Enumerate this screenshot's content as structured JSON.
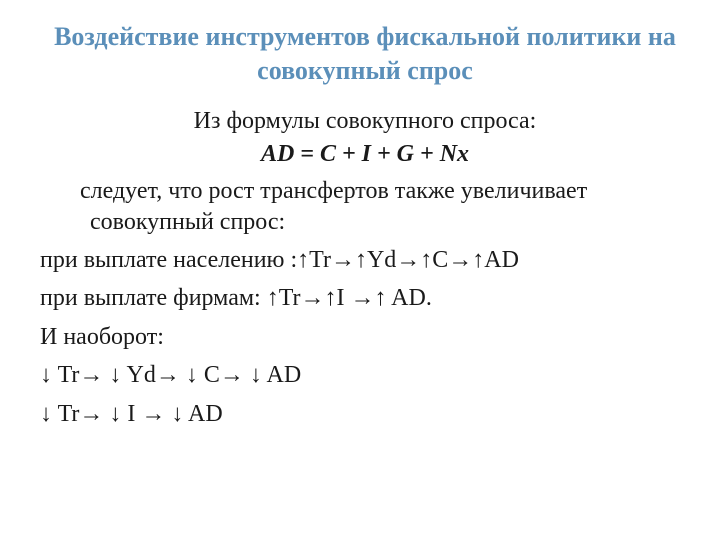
{
  "title": "Воздействие инструментов фискальной политики на совокупный спрос",
  "intro": "Из формулы совокупного спроса:",
  "formula": "AD = C + I + G + Nx",
  "followup": "следует, что рост трансфертов также увеличивает совокупный спрос:",
  "line1": "при выплате населению :↑Tr→↑Yd→↑C→↑AD",
  "line2": "при выплате фирмам: ↑Tr→↑I →↑ AD.",
  "line3": "И наоборот:",
  "line4": "↓ Tr→ ↓ Yd→ ↓ C→ ↓ AD",
  "line5": "↓ Tr→ ↓ I → ↓ AD",
  "colors": {
    "title": "#5b8fb9",
    "body": "#1a1a1a",
    "background": "#ffffff"
  },
  "typography": {
    "title_fontsize": 26,
    "title_weight": "bold",
    "body_fontsize": 24,
    "formula_style": "italic bold",
    "font_family": "Times New Roman"
  }
}
